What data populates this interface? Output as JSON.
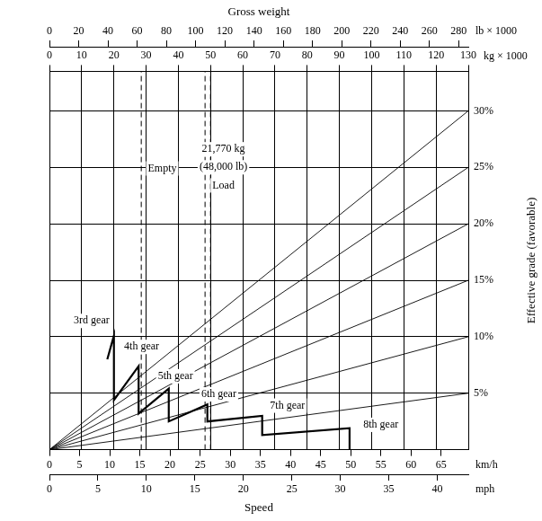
{
  "chart_data": {
    "type": "line",
    "grid": true,
    "top_axes": [
      {
        "title": "Gross weight",
        "unit": "lb × 1000",
        "xlim": [
          0,
          286.6
        ],
        "xticks": [
          0,
          20,
          40,
          60,
          80,
          100,
          120,
          140,
          160,
          180,
          200,
          220,
          240,
          260,
          280
        ]
      },
      {
        "unit": "kg × 1000",
        "xlim": [
          0,
          130
        ],
        "xticks": [
          0,
          10,
          20,
          30,
          40,
          50,
          60,
          70,
          80,
          90,
          100,
          110,
          120,
          130
        ]
      }
    ],
    "bottom_axes": [
      {
        "unit": "km/h",
        "xlim": [
          0,
          69.5
        ],
        "xticks": [
          0,
          5,
          10,
          15,
          20,
          25,
          30,
          35,
          40,
          45,
          50,
          55,
          60,
          65
        ]
      },
      {
        "title": "Speed",
        "unit": "mph",
        "xlim": [
          0,
          43.2
        ],
        "xticks": [
          0,
          5,
          10,
          15,
          20,
          25,
          30,
          35,
          40
        ]
      }
    ],
    "ylabel": "Effective grade (favorable)",
    "ylim": [
      0,
      33.5
    ],
    "yticks": [
      {
        "value": 5,
        "label": "5%"
      },
      {
        "value": 10,
        "label": "10%"
      },
      {
        "value": 15,
        "label": "15%"
      },
      {
        "value": 20,
        "label": "20%"
      },
      {
        "value": 25,
        "label": "25%"
      },
      {
        "value": 30,
        "label": "30%"
      }
    ],
    "curve": {
      "x_unit": "km/h",
      "color": "#000000",
      "line_style": "solid",
      "x": [
        9.6,
        10.7,
        10.7,
        14.8,
        14.8,
        19.8,
        19.8,
        26.2,
        26.2,
        35.3,
        35.3,
        49.8,
        49.8
      ],
      "values": [
        8.0,
        10.1,
        4.4,
        7.4,
        3.2,
        5.4,
        2.5,
        4.0,
        2.5,
        3.0,
        1.3,
        1.9,
        0
      ]
    },
    "grade_lines": {
      "x_unit": "kg × 1000",
      "color": "#000000",
      "line_style": "solid",
      "values": [
        5,
        10,
        15,
        20,
        25,
        30
      ]
    },
    "weight_lines": {
      "x_unit": "kg × 1000",
      "color": "#000000",
      "line_style": "dashed",
      "x": [
        28.5,
        48.3,
        50
      ]
    },
    "annotations": [
      {
        "text": "3rd gear",
        "x_unit": "km/h",
        "x": 7.0,
        "y": 11.4
      },
      {
        "text": "4th gear",
        "x_unit": "km/h",
        "x": 15.3,
        "y": 9.1
      },
      {
        "text": "5th gear",
        "x_unit": "km/h",
        "x": 20.9,
        "y": 6.5
      },
      {
        "text": "6th gear",
        "x_unit": "km/h",
        "x": 28.1,
        "y": 4.9
      },
      {
        "text": "7th gear",
        "x_unit": "km/h",
        "x": 39.5,
        "y": 3.9
      },
      {
        "text": "8th gear",
        "x_unit": "km/h",
        "x": 55.0,
        "y": 2.2
      },
      {
        "text": "Empty",
        "x_unit": "kg × 1000",
        "x": 35,
        "y": 24.9
      },
      {
        "text": "21,770 kg",
        "x_unit": "kg × 1000",
        "x": 54,
        "y": 26.6
      },
      {
        "text": "(48,000 lb)",
        "x_unit": "kg × 1000",
        "x": 54,
        "y": 25.0
      },
      {
        "text": "Load",
        "x_unit": "kg × 1000",
        "x": 54,
        "y": 23.4
      }
    ]
  }
}
